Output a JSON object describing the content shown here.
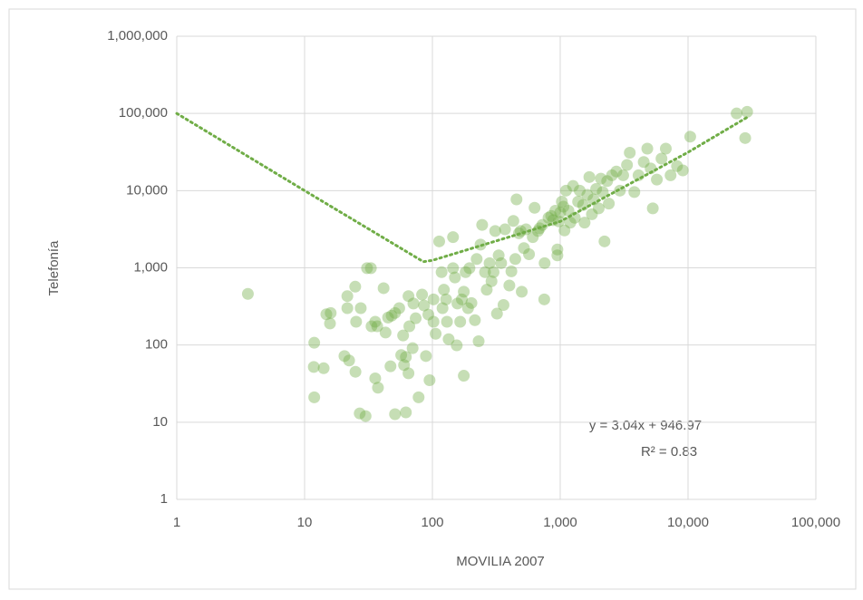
{
  "chart_data": {
    "type": "scatter",
    "log_x": true,
    "log_y": true,
    "grid": true,
    "x_label": "MOVILIA 2007",
    "y_label": "Telefonía",
    "color": "#70ad47",
    "xlim": [
      1,
      100000
    ],
    "ylim": [
      1,
      1000000
    ],
    "xticks": [
      1,
      10,
      100,
      {
        "value": 1000,
        "label": "1,000"
      },
      {
        "value": 10000,
        "label": "10,000"
      },
      {
        "value": 100000,
        "label": "100,000"
      }
    ],
    "yticks": [
      1,
      10,
      100,
      {
        "value": 1000,
        "label": "1,000"
      },
      {
        "value": 10000,
        "label": "10,000"
      },
      {
        "value": 100000,
        "label": "100,000"
      },
      {
        "value": 1000000,
        "label": "1,000,000"
      }
    ],
    "x": [
      3.6,
      11.8,
      11.9,
      11.9,
      14.8,
      15.8,
      14.1,
      16,
      20.5,
      21.6,
      22.3,
      21.6,
      24.9,
      25.3,
      25,
      27,
      27.5,
      30,
      30.8,
      33,
      33.4,
      35.7,
      37,
      35.7,
      37.5,
      41.5,
      43,
      45,
      48,
      47,
      51,
      51,
      55,
      57,
      59,
      60,
      62,
      65,
      65,
      62,
      66,
      70,
      71,
      74,
      78,
      83,
      86,
      89,
      93,
      95,
      102,
      102,
      106,
      113,
      118,
      120,
      123,
      128,
      130,
      134,
      145,
      145,
      150,
      155,
      157,
      165,
      170,
      176,
      176,
      182,
      190,
      195,
      202,
      215,
      222,
      230,
      238,
      245,
      258,
      266,
      280,
      290,
      301,
      310,
      330,
      320,
      345,
      360,
      370,
      400,
      415,
      430,
      445,
      455,
      475,
      490,
      500,
      520,
      540,
      570,
      610,
      630,
      670,
      690,
      725,
      750,
      755,
      810,
      850,
      880,
      915,
      950,
      950,
      975,
      1000,
      1030,
      1060,
      1080,
      1110,
      1160,
      1200,
      1260,
      1300,
      1380,
      1420,
      1510,
      1550,
      1630,
      1690,
      1770,
      1820,
      1910,
      2000,
      2080,
      2150,
      2220,
      2330,
      2400,
      2540,
      2750,
      2930,
      3110,
      3330,
      3500,
      3800,
      4100,
      4500,
      4800,
      5100,
      5300,
      5700,
      6200,
      6700,
      7300,
      8200,
      9100,
      10400,
      24000,
      29000,
      28000
    ],
    "values": [
      460,
      52,
      21,
      107,
      250,
      190,
      50,
      260,
      72,
      430,
      63,
      300,
      570,
      200,
      45,
      13,
      300,
      12,
      990,
      990,
      175,
      200,
      175,
      37,
      28,
      545,
      145,
      227,
      240,
      53,
      260,
      12.7,
      300,
      74,
      133,
      55,
      70,
      430,
      43,
      13.4,
      175,
      91,
      345,
      222,
      21,
      450,
      325,
      72,
      248,
      35,
      390,
      200,
      140,
      2200,
      880,
      300,
      520,
      390,
      200,
      119,
      990,
      2500,
      750,
      99,
      345,
      200,
      390,
      490,
      40,
      880,
      300,
      990,
      350,
      210,
      1300,
      112,
      2000,
      3600,
      880,
      520,
      1150,
      670,
      880,
      3000,
      1450,
      255,
      1150,
      330,
      3150,
      590,
      900,
      4050,
      1300,
      7700,
      2800,
      3000,
      490,
      1800,
      3150,
      1500,
      2500,
      6000,
      3000,
      3250,
      3600,
      390,
      1150,
      4450,
      4700,
      4150,
      5500,
      1730,
      1450,
      4000,
      5200,
      7200,
      6200,
      3050,
      10000,
      5500,
      3850,
      11500,
      4450,
      7200,
      10000,
      6500,
      3850,
      8800,
      15000,
      4950,
      7700,
      10500,
      5900,
      14300,
      9600,
      2200,
      13300,
      6800,
      15800,
      17700,
      10000,
      15800,
      21500,
      31000,
      9600,
      15800,
      23500,
      35000,
      19400,
      5900,
      13900,
      26000,
      35000,
      15800,
      20800,
      18300,
      50000,
      100000,
      105000,
      48000
    ],
    "trendline": {
      "color": "#70ad47",
      "x": [
        1,
        10,
        85,
        100,
        1000,
        10000,
        30000
      ],
      "values": [
        100000,
        10000,
        1200,
        1250,
        3990,
        31400,
        92100
      ]
    },
    "annotations": [
      "y = 3.04x + 946.97",
      "R² = 0.83"
    ]
  }
}
